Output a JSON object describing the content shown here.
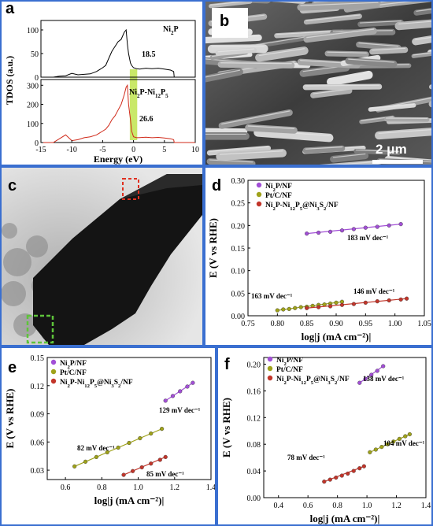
{
  "panels": {
    "a": {
      "label": "a"
    },
    "b": {
      "label": "b",
      "scale_bar": "2 μm"
    },
    "c": {
      "label": "c"
    },
    "d": {
      "label": "d"
    },
    "e": {
      "label": "e"
    },
    "f": {
      "label": "f"
    }
  },
  "colors": {
    "frame": "#3a6fd0",
    "purple": "#a24fd6",
    "olive": "#9fa21a",
    "red": "#c2352a",
    "black": "#000000",
    "highlight": "#bfe44f",
    "box_red": "#e03020",
    "box_green": "#5ec43a"
  },
  "chart_data": [
    {
      "id": "a",
      "type": "line",
      "xlabel": "Energy (eV)",
      "ylabel": "TDOS (a.u.)",
      "x_ticks": [
        -15,
        -10,
        -5,
        0,
        5,
        10
      ],
      "xlim": [
        -15,
        10
      ],
      "highlight_x": [
        -0.6,
        0.6
      ],
      "subplots": [
        {
          "name": "Ni2P",
          "label_parts": [
            [
              "Ni",
              ""
            ],
            [
              "2",
              "sub"
            ],
            [
              "P",
              ""
            ]
          ],
          "annotation": "18.5",
          "ylim": [
            0,
            120
          ],
          "y_ticks": [
            0,
            50,
            100
          ],
          "color": "#000000",
          "x": [
            -15,
            -14,
            -13,
            -12,
            -11,
            -10,
            -9,
            -8,
            -7,
            -6,
            -5,
            -4.5,
            -4,
            -3.5,
            -3,
            -2.5,
            -2,
            -1.5,
            -1.2,
            -1,
            -0.8,
            -0.5,
            -0.3,
            0,
            0.5,
            1,
            2,
            3,
            4,
            5,
            6,
            6.5,
            6.6,
            10
          ],
          "y": [
            0,
            0,
            0,
            2,
            3,
            8,
            5,
            6,
            7,
            12,
            20,
            25,
            40,
            55,
            65,
            75,
            80,
            95,
            100,
            70,
            50,
            30,
            25,
            20,
            18,
            17,
            19,
            18,
            19,
            17,
            15,
            12,
            0,
            0
          ]
        },
        {
          "name": "Ni2P-Ni12P5",
          "label_parts": [
            [
              "Ni",
              ""
            ],
            [
              "2",
              "sub"
            ],
            [
              "P-Ni",
              ""
            ],
            [
              "12",
              "sub"
            ],
            [
              "P",
              ""
            ],
            [
              "5",
              "sub"
            ]
          ],
          "annotation": "26.6",
          "ylim": [
            0,
            330
          ],
          "y_ticks": [
            0,
            100,
            200,
            300
          ],
          "color": "#d02a1a",
          "x": [
            -15,
            -14,
            -13,
            -12,
            -11,
            -10,
            -9,
            -8,
            -7,
            -6,
            -5,
            -4.5,
            -4,
            -3.5,
            -3,
            -2.5,
            -2,
            -1.5,
            -1.2,
            -1,
            -0.8,
            -0.5,
            -0.3,
            0,
            0.5,
            1,
            2,
            3,
            4,
            5,
            6,
            6.5,
            6.6,
            10
          ],
          "y": [
            0,
            0,
            0,
            20,
            40,
            10,
            15,
            25,
            30,
            40,
            60,
            70,
            90,
            120,
            140,
            170,
            200,
            250,
            290,
            300,
            200,
            120,
            60,
            30,
            25,
            26,
            28,
            25,
            27,
            24,
            20,
            15,
            0,
            0
          ]
        }
      ]
    },
    {
      "id": "d",
      "type": "scatter",
      "xlabel": "log|j (mA cm⁻²)|",
      "ylabel": "E (V vs RHE)",
      "xlim": [
        0.75,
        1.05
      ],
      "ylim": [
        0.0,
        0.3
      ],
      "x_ticks": [
        "0.75",
        "0.80",
        "0.85",
        "0.90",
        "0.95",
        "1.00",
        "1.05"
      ],
      "y_ticks": [
        "0.00",
        "0.05",
        "0.10",
        "0.15",
        "0.20",
        "0.25",
        "0.30"
      ],
      "legend": [
        {
          "parts": [
            [
              "Ni",
              ""
            ],
            [
              "2",
              "sub"
            ],
            [
              "P/NF",
              ""
            ]
          ],
          "color": "#a24fd6"
        },
        {
          "parts": [
            [
              "Pt/C/NF",
              ""
            ]
          ],
          "color": "#9fa21a"
        },
        {
          "parts": [
            [
              "Ni",
              ""
            ],
            [
              "2",
              "sub"
            ],
            [
              "P-Ni",
              ""
            ],
            [
              "12",
              "sub"
            ],
            [
              "P",
              ""
            ],
            [
              "5",
              "sub"
            ],
            [
              "@Ni",
              ""
            ],
            [
              "3",
              "sub"
            ],
            [
              "S",
              ""
            ],
            [
              "2",
              "sub"
            ],
            [
              "/NF",
              ""
            ]
          ],
          "color": "#c2352a"
        }
      ],
      "series": [
        {
          "name": "Ni2P/NF",
          "slope": "183 mV dec⁻¹",
          "color": "#a24fd6",
          "x": [
            0.85,
            0.87,
            0.89,
            0.91,
            0.93,
            0.95,
            0.97,
            0.99,
            1.01
          ],
          "y": [
            0.182,
            0.184,
            0.186,
            0.189,
            0.192,
            0.195,
            0.197,
            0.2,
            0.203
          ]
        },
        {
          "name": "Pt/C/NF",
          "slope": "163 mV dec⁻¹",
          "color": "#9fa21a",
          "x": [
            0.8,
            0.81,
            0.82,
            0.83,
            0.84,
            0.85,
            0.86,
            0.87,
            0.88,
            0.89,
            0.9,
            0.91
          ],
          "y": [
            0.012,
            0.014,
            0.015,
            0.017,
            0.019,
            0.02,
            0.022,
            0.024,
            0.025,
            0.027,
            0.029,
            0.031
          ]
        },
        {
          "name": "Ni2P-Ni12P5@Ni3S2/NF",
          "slope": "146 mV dec⁻¹",
          "color": "#c2352a",
          "x": [
            0.85,
            0.87,
            0.89,
            0.91,
            0.93,
            0.95,
            0.97,
            0.99,
            1.01,
            1.02
          ],
          "y": [
            0.017,
            0.019,
            0.021,
            0.024,
            0.026,
            0.029,
            0.032,
            0.034,
            0.036,
            0.038
          ]
        }
      ]
    },
    {
      "id": "e",
      "type": "scatter",
      "xlabel": "log|j (mA cm⁻²)|",
      "ylabel": "E (V vs RHE)",
      "xlim": [
        0.5,
        1.4
      ],
      "ylim": [
        0.02,
        0.15
      ],
      "x_ticks": [
        "0.6",
        "0.8",
        "1.0",
        "1.2",
        "1.4"
      ],
      "y_ticks": [
        "0.03",
        "0.06",
        "0.09",
        "0.12",
        "0.15"
      ],
      "legend": [
        {
          "parts": [
            [
              "Ni",
              ""
            ],
            [
              "2",
              "sub"
            ],
            [
              "P/NF",
              ""
            ]
          ],
          "color": "#a24fd6"
        },
        {
          "parts": [
            [
              "Pt/C/NF",
              ""
            ]
          ],
          "color": "#9fa21a"
        },
        {
          "parts": [
            [
              "Ni",
              ""
            ],
            [
              "2",
              "sub"
            ],
            [
              "P-Ni",
              ""
            ],
            [
              "12",
              "sub"
            ],
            [
              "P",
              ""
            ],
            [
              "5",
              "sub"
            ],
            [
              "@Ni",
              ""
            ],
            [
              "3",
              "sub"
            ],
            [
              "S",
              ""
            ],
            [
              "2",
              "sub"
            ],
            [
              "/NF",
              ""
            ]
          ],
          "color": "#c2352a"
        }
      ],
      "series": [
        {
          "name": "Ni2P/NF",
          "slope": "129 mV dec⁻¹",
          "color": "#a24fd6",
          "x": [
            1.15,
            1.19,
            1.23,
            1.27,
            1.3
          ],
          "y": [
            0.104,
            0.109,
            0.114,
            0.119,
            0.123
          ]
        },
        {
          "name": "Pt/C/NF",
          "slope": "82 mV dec⁻¹",
          "color": "#9fa21a",
          "x": [
            0.65,
            0.71,
            0.77,
            0.83,
            0.89,
            0.95,
            1.01,
            1.07,
            1.13
          ],
          "y": [
            0.034,
            0.039,
            0.044,
            0.049,
            0.054,
            0.059,
            0.064,
            0.069,
            0.074
          ]
        },
        {
          "name": "Ni2P-Ni12P5@Ni3S2/NF",
          "slope": "85 mV dec⁻¹",
          "color": "#c2352a",
          "x": [
            0.92,
            0.97,
            1.02,
            1.07,
            1.12,
            1.15
          ],
          "y": [
            0.025,
            0.029,
            0.033,
            0.037,
            0.041,
            0.044
          ]
        }
      ]
    },
    {
      "id": "f",
      "type": "scatter",
      "xlabel": "log|j (mA cm⁻²)|",
      "ylabel": "E (V vs RHE)",
      "xlim": [
        0.3,
        1.4
      ],
      "ylim": [
        0.0,
        0.21
      ],
      "x_ticks": [
        "0.4",
        "0.6",
        "0.8",
        "1.0",
        "1.2",
        "1.4"
      ],
      "y_ticks": [
        "0.00",
        "0.04",
        "0.08",
        "0.12",
        "0.16",
        "0.20"
      ],
      "legend": [
        {
          "parts": [
            [
              "Ni",
              ""
            ],
            [
              "2",
              "sub"
            ],
            [
              "P/NF",
              ""
            ]
          ],
          "color": "#a24fd6"
        },
        {
          "parts": [
            [
              "Pt/C/NF",
              ""
            ]
          ],
          "color": "#9fa21a"
        },
        {
          "parts": [
            [
              "Ni",
              ""
            ],
            [
              "2",
              "sub"
            ],
            [
              "P-Ni",
              ""
            ],
            [
              "12",
              "sub"
            ],
            [
              "P",
              ""
            ],
            [
              "5",
              "sub"
            ],
            [
              "@Ni",
              ""
            ],
            [
              "3",
              "sub"
            ],
            [
              "S",
              ""
            ],
            [
              "2",
              "sub"
            ],
            [
              "/NF",
              ""
            ]
          ],
          "color": "#c2352a"
        }
      ],
      "series": [
        {
          "name": "Ni2P/NF",
          "slope": "138 mV dec⁻¹",
          "color": "#a24fd6",
          "x": [
            0.95,
            0.99,
            1.03,
            1.07,
            1.11
          ],
          "y": [
            0.172,
            0.178,
            0.184,
            0.19,
            0.197
          ]
        },
        {
          "name": "Pt/C/NF",
          "slope": "104 mV dec⁻¹",
          "color": "#9fa21a",
          "x": [
            1.02,
            1.06,
            1.1,
            1.14,
            1.18,
            1.22,
            1.26,
            1.29
          ],
          "y": [
            0.068,
            0.072,
            0.076,
            0.08,
            0.084,
            0.088,
            0.092,
            0.095
          ]
        },
        {
          "name": "Ni2P-Ni12P5@Ni3S2/NF",
          "slope": "78 mV dec⁻¹",
          "color": "#c2352a",
          "x": [
            0.71,
            0.75,
            0.79,
            0.83,
            0.87,
            0.91,
            0.95,
            0.98
          ],
          "y": [
            0.024,
            0.027,
            0.03,
            0.033,
            0.036,
            0.04,
            0.044,
            0.047
          ]
        }
      ]
    }
  ]
}
